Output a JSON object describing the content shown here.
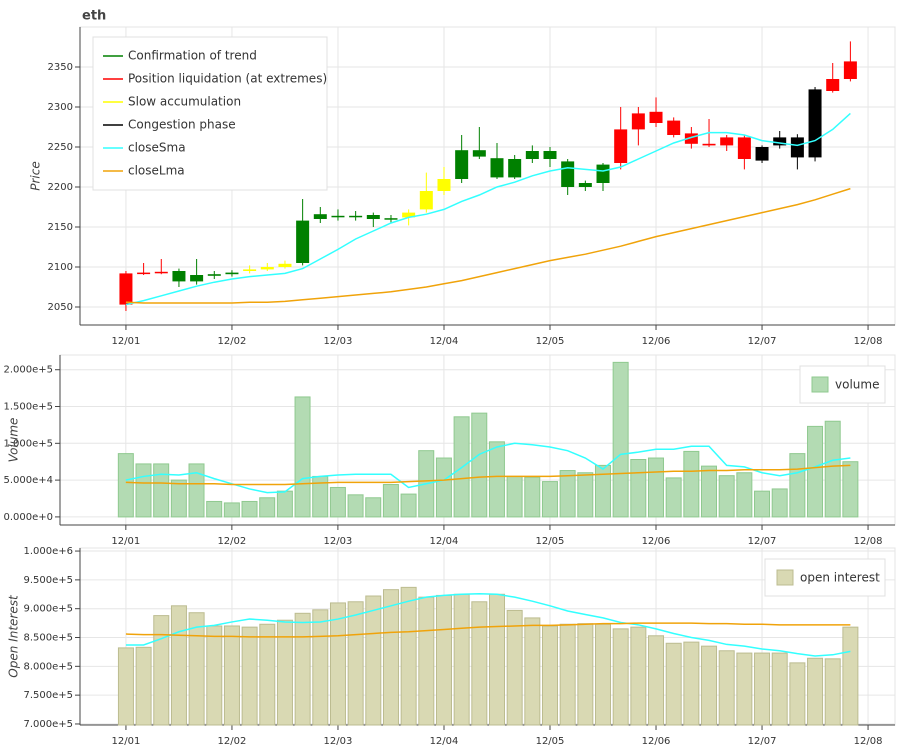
{
  "chart_data": [
    {
      "type": "candlestick",
      "title": "eth",
      "y_label": "Price",
      "x": [
        0,
        4,
        8,
        12,
        16,
        20,
        24,
        28,
        32,
        36,
        40,
        44,
        48,
        52,
        56,
        60,
        64,
        68,
        72,
        76,
        80,
        84,
        88,
        92,
        96,
        100,
        104,
        108,
        112,
        116,
        120,
        124,
        128,
        132,
        136,
        140,
        144,
        148,
        152,
        156,
        160,
        164
      ],
      "xlim": [
        -10.4,
        174.1
      ],
      "xticks": [
        {
          "value": 0,
          "label": "12/01"
        },
        {
          "value": 24,
          "label": "12/02"
        },
        {
          "value": 48,
          "label": "12/03"
        },
        {
          "value": 72,
          "label": "12/04"
        },
        {
          "value": 96,
          "label": "12/05"
        },
        {
          "value": 120,
          "label": "12/06"
        },
        {
          "value": 144,
          "label": "12/07"
        },
        {
          "value": 168,
          "label": "12/08"
        }
      ],
      "ylim": [
        2027.5,
        2400
      ],
      "yticks": [
        2050,
        2100,
        2150,
        2200,
        2250,
        2300,
        2350
      ],
      "grid": true,
      "phases": [
        {
          "name": "Confirmation of trend",
          "color": "#008000"
        },
        {
          "name": "Position liquidation (at extremes)",
          "color": "#ff0000"
        },
        {
          "name": "Slow accumulation",
          "color": "#ffff00"
        },
        {
          "name": "Congestion phase",
          "color": "#000000"
        }
      ],
      "phase": [
        1,
        1,
        1,
        0,
        0,
        0,
        0,
        2,
        2,
        2,
        0,
        0,
        0,
        0,
        0,
        0,
        2,
        2,
        2,
        0,
        0,
        0,
        0,
        0,
        0,
        0,
        0,
        0,
        1,
        1,
        1,
        1,
        1,
        1,
        1,
        1,
        3,
        3,
        3,
        3,
        1,
        1
      ],
      "open": [
        2053,
        2092,
        2093,
        2095,
        2082,
        2089,
        2091,
        2095,
        2097,
        2100,
        2105,
        2160,
        2164,
        2163,
        2165,
        2160,
        2162,
        2172,
        2195,
        2210,
        2246,
        2236,
        2235,
        2235,
        2245,
        2232,
        2200,
        2205,
        2230,
        2272,
        2294,
        2283,
        2267,
        2254,
        2252,
        2262,
        2233,
        2252,
        2262,
        2237,
        2320,
        2335
      ],
      "high": [
        2095,
        2105,
        2110,
        2098,
        2110,
        2095,
        2096,
        2102,
        2105,
        2108,
        2185,
        2175,
        2172,
        2170,
        2168,
        2165,
        2172,
        2218,
        2225,
        2265,
        2275,
        2255,
        2240,
        2252,
        2250,
        2235,
        2208,
        2230,
        2300,
        2300,
        2312,
        2287,
        2275,
        2285,
        2265,
        2265,
        2252,
        2270,
        2266,
        2325,
        2355,
        2382
      ],
      "low": [
        2045,
        2090,
        2091,
        2075,
        2078,
        2085,
        2088,
        2092,
        2095,
        2098,
        2102,
        2155,
        2158,
        2158,
        2150,
        2155,
        2152,
        2168,
        2190,
        2205,
        2235,
        2210,
        2210,
        2230,
        2225,
        2190,
        2195,
        2195,
        2222,
        2252,
        2275,
        2262,
        2248,
        2250,
        2245,
        2222,
        2230,
        2248,
        2222,
        2232,
        2318,
        2332
      ],
      "close": [
        2092,
        2093,
        2094,
        2082,
        2090,
        2091,
        2093,
        2097,
        2100,
        2104,
        2158,
        2166,
        2163,
        2164,
        2160,
        2161,
        2168,
        2195,
        2210,
        2246,
        2238,
        2212,
        2212,
        2245,
        2235,
        2200,
        2205,
        2228,
        2272,
        2292,
        2280,
        2265,
        2254,
        2252,
        2262,
        2235,
        2250,
        2262,
        2237,
        2322,
        2335,
        2357
      ],
      "series": [
        {
          "name": "closeSma",
          "color": "#33ffff",
          "values": [
            2053,
            2058,
            2064,
            2070,
            2076,
            2081,
            2085,
            2088,
            2090,
            2092,
            2098,
            2110,
            2122,
            2135,
            2145,
            2155,
            2162,
            2166,
            2172,
            2182,
            2190,
            2200,
            2206,
            2214,
            2220,
            2224,
            2222,
            2220,
            2225,
            2235,
            2245,
            2255,
            2262,
            2268,
            2268,
            2265,
            2258,
            2255,
            2252,
            2258,
            2272,
            2292
          ]
        },
        {
          "name": "closeLma",
          "color": "#f0a30a",
          "values": [
            2056,
            2055,
            2055,
            2055,
            2055,
            2055,
            2055,
            2056,
            2056,
            2057,
            2059,
            2061,
            2063,
            2065,
            2067,
            2069,
            2072,
            2075,
            2079,
            2083,
            2088,
            2093,
            2098,
            2103,
            2108,
            2112,
            2116,
            2121,
            2126,
            2132,
            2138,
            2143,
            2148,
            2153,
            2158,
            2163,
            2168,
            2173,
            2178,
            2184,
            2191,
            2198
          ]
        }
      ]
    },
    {
      "type": "bar",
      "y_label": "Volume",
      "x": [
        0,
        4,
        8,
        12,
        16,
        20,
        24,
        28,
        32,
        36,
        40,
        44,
        48,
        52,
        56,
        60,
        64,
        68,
        72,
        76,
        80,
        84,
        88,
        92,
        96,
        100,
        104,
        108,
        112,
        116,
        120,
        124,
        128,
        132,
        136,
        140,
        144,
        148,
        152,
        156,
        160,
        164
      ],
      "xlim": [
        -14.9,
        174.1
      ],
      "xticks": [
        {
          "value": 0,
          "label": "12/01"
        },
        {
          "value": 24,
          "label": "12/02"
        },
        {
          "value": 48,
          "label": "12/03"
        },
        {
          "value": 72,
          "label": "12/04"
        },
        {
          "value": 96,
          "label": "12/05"
        },
        {
          "value": 120,
          "label": "12/06"
        },
        {
          "value": 144,
          "label": "12/07"
        },
        {
          "value": 168,
          "label": "12/08"
        }
      ],
      "ylim": [
        -11000,
        220000
      ],
      "yticks": [
        {
          "value": 0,
          "label": "0.000e+0"
        },
        {
          "value": 50000,
          "label": "5.000e+4"
        },
        {
          "value": 100000,
          "label": "1.000e+5"
        },
        {
          "value": 150000,
          "label": "1.500e+5"
        },
        {
          "value": 200000,
          "label": "2.000e+5"
        }
      ],
      "grid": true,
      "series": [
        {
          "name": "volume",
          "color": "#b3dbb3",
          "values": [
            86000,
            72000,
            72000,
            50000,
            72000,
            21000,
            19000,
            21000,
            26000,
            35000,
            163000,
            55000,
            40000,
            30000,
            26000,
            44000,
            31000,
            90000,
            80000,
            136000,
            141000,
            102000,
            55000,
            54000,
            48000,
            63000,
            60000,
            70000,
            210000,
            78000,
            80000,
            53000,
            89000,
            69000,
            56000,
            60000,
            35000,
            38000,
            86000,
            123000,
            130000,
            75000
          ]
        }
      ],
      "lines": [
        {
          "color": "#33ffff",
          "values": [
            50000,
            55000,
            58000,
            57000,
            60000,
            52000,
            45000,
            38000,
            33000,
            34000,
            52000,
            55000,
            57000,
            58000,
            58000,
            58000,
            40000,
            45000,
            50000,
            67000,
            85000,
            95000,
            100000,
            98000,
            95000,
            90000,
            80000,
            65000,
            85000,
            88000,
            92000,
            92000,
            96000,
            96000,
            70000,
            68000,
            60000,
            56000,
            60000,
            68000,
            77000,
            80000
          ]
        },
        {
          "color": "#f0a30a",
          "values": [
            47000,
            46000,
            46000,
            45000,
            45000,
            45000,
            44000,
            44000,
            44000,
            44000,
            45000,
            46000,
            47000,
            47000,
            47000,
            47000,
            48000,
            49000,
            50000,
            52000,
            54000,
            55000,
            55000,
            55000,
            55000,
            56000,
            57000,
            58000,
            59000,
            60000,
            61000,
            62000,
            62000,
            63000,
            63000,
            64000,
            64000,
            64000,
            65000,
            67000,
            69000,
            70000
          ]
        }
      ]
    },
    {
      "type": "bar",
      "y_label": "Open Interest",
      "x": [
        0,
        4,
        8,
        12,
        16,
        20,
        24,
        28,
        32,
        36,
        40,
        44,
        48,
        52,
        56,
        60,
        64,
        68,
        72,
        76,
        80,
        84,
        88,
        92,
        96,
        100,
        104,
        108,
        112,
        116,
        120,
        124,
        128,
        132,
        136,
        140,
        144,
        148,
        152,
        156,
        160,
        164
      ],
      "xlim": [
        -10.4,
        174.1
      ],
      "xticks": [
        {
          "value": 0,
          "label": "12/01"
        },
        {
          "value": 24,
          "label": "12/02"
        },
        {
          "value": 48,
          "label": "12/03"
        },
        {
          "value": 72,
          "label": "12/04"
        },
        {
          "value": 96,
          "label": "12/05"
        },
        {
          "value": 120,
          "label": "12/06"
        },
        {
          "value": 144,
          "label": "12/07"
        },
        {
          "value": 168,
          "label": "12/08"
        }
      ],
      "ylim": [
        698200,
        1005300
      ],
      "yticks": [
        {
          "value": 700000,
          "label": "7.000e+5"
        },
        {
          "value": 750000,
          "label": "7.500e+5"
        },
        {
          "value": 800000,
          "label": "8.000e+5"
        },
        {
          "value": 850000,
          "label": "8.500e+5"
        },
        {
          "value": 900000,
          "label": "9.000e+5"
        },
        {
          "value": 950000,
          "label": "9.500e+5"
        },
        {
          "value": 1000000,
          "label": "1.000e+6"
        }
      ],
      "grid": true,
      "series": [
        {
          "name": "open interest",
          "color": "#d9d9b3",
          "values": [
            832000,
            833000,
            888000,
            905000,
            893000,
            870000,
            870000,
            868000,
            873000,
            880000,
            892000,
            898000,
            910000,
            912000,
            922000,
            933000,
            937000,
            920000,
            923000,
            925000,
            912000,
            925000,
            897000,
            884000,
            870000,
            873000,
            874000,
            873000,
            865000,
            868000,
            853000,
            840000,
            842000,
            835000,
            827000,
            823000,
            823000,
            823000,
            806000,
            814000,
            813000,
            868000
          ]
        }
      ],
      "lines": [
        {
          "color": "#33ffff",
          "values": [
            837000,
            837000,
            848000,
            860000,
            868000,
            871000,
            877000,
            882000,
            880000,
            877000,
            876000,
            877000,
            882000,
            889000,
            897000,
            905000,
            913000,
            920000,
            923000,
            925000,
            926000,
            925000,
            920000,
            913000,
            905000,
            896000,
            890000,
            884000,
            876000,
            872000,
            865000,
            857000,
            850000,
            845000,
            838000,
            835000,
            830000,
            827000,
            822000,
            818000,
            820000,
            826000
          ]
        },
        {
          "color": "#f0a30a",
          "values": [
            856000,
            855000,
            855000,
            854000,
            853000,
            852000,
            852000,
            851000,
            851000,
            851000,
            851000,
            852000,
            853000,
            855000,
            857000,
            859000,
            860000,
            862000,
            864000,
            866000,
            868000,
            869000,
            870000,
            871000,
            871000,
            872000,
            873000,
            874000,
            874000,
            875000,
            875000,
            875000,
            875000,
            874000,
            874000,
            873000,
            873000,
            872000,
            872000,
            872000,
            872000,
            872000
          ]
        }
      ]
    }
  ]
}
